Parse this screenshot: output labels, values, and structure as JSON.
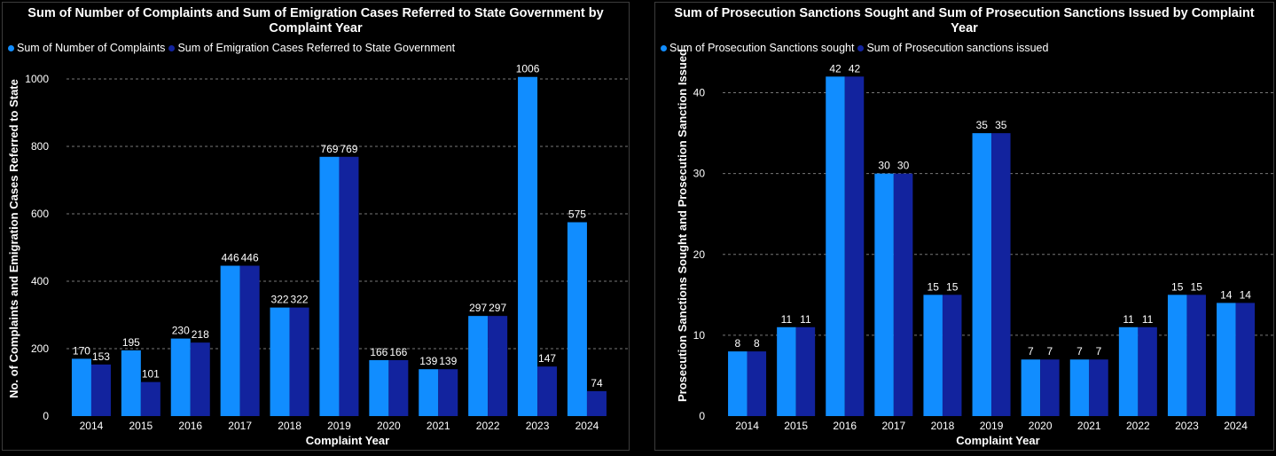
{
  "colors": {
    "sought": "#118DFF",
    "issued": "#12239E",
    "background": "#000000",
    "grid": "#777777"
  },
  "chart_data": [
    {
      "type": "bar",
      "title": "Sum of Number of Complaints and Sum of Emigration Cases Referred to State Government by Complaint Year",
      "xlabel": "Complaint Year",
      "ylabel": "No. of Complaints and Emigration Cases Referred to State",
      "ylim": [
        0,
        1000
      ],
      "yticks": [
        0,
        200,
        400,
        600,
        800,
        1000
      ],
      "categories": [
        "2014",
        "2015",
        "2016",
        "2017",
        "2018",
        "2019",
        "2020",
        "2021",
        "2022",
        "2023",
        "2024"
      ],
      "series": [
        {
          "name": "Sum of Number of Complaints",
          "values": [
            170,
            195,
            230,
            446,
            322,
            769,
            166,
            139,
            297,
            1006,
            575
          ]
        },
        {
          "name": "Sum of Emigration Cases Referred to State Government",
          "values": [
            153,
            101,
            218,
            446,
            322,
            769,
            166,
            139,
            297,
            147,
            74
          ]
        }
      ],
      "legend": "top-left",
      "grid": true
    },
    {
      "type": "bar",
      "title": "Sum of Prosecution Sanctions Sought and Sum of Prosecution Sanctions Issued by Complaint Year",
      "xlabel": "Complaint Year",
      "ylabel": "Prosecution Sanctions Sought and Prosecution Sanction Issued",
      "ylim": [
        0,
        40
      ],
      "yticks": [
        0,
        10,
        20,
        30,
        40
      ],
      "categories": [
        "2014",
        "2015",
        "2016",
        "2017",
        "2018",
        "2019",
        "2020",
        "2021",
        "2022",
        "2023",
        "2024"
      ],
      "series": [
        {
          "name": "Sum of Prosecution Sanctions sought",
          "values": [
            8,
            11,
            42,
            30,
            15,
            35,
            7,
            7,
            11,
            15,
            14
          ]
        },
        {
          "name": "Sum of Prosecution sanctions issued",
          "values": [
            8,
            11,
            42,
            30,
            15,
            35,
            7,
            7,
            11,
            15,
            14
          ]
        }
      ],
      "legend": "top-left",
      "grid": true
    }
  ]
}
